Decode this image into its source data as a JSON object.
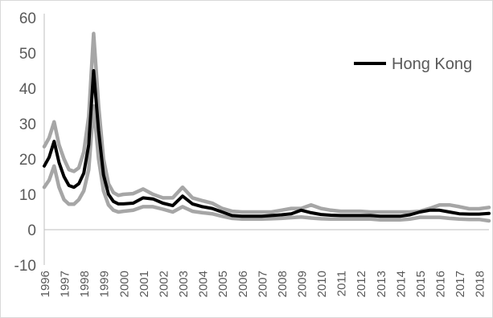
{
  "chart_data": {
    "type": "line",
    "title": "",
    "xlabel": "",
    "ylabel": "",
    "ylim": [
      -10,
      60
    ],
    "xlim": [
      1996,
      2018.5
    ],
    "grid": false,
    "legend_position": "top-right",
    "y_ticks": [
      "-10",
      "0",
      "10",
      "20",
      "30",
      "40",
      "50",
      "60"
    ],
    "x_ticks": [
      "1996",
      "1997",
      "1998",
      "1999",
      "2000",
      "2001",
      "2002",
      "2003",
      "2004",
      "2005",
      "2006",
      "2007",
      "2008",
      "2009",
      "2010",
      "2011",
      "2012",
      "2013",
      "2014",
      "2015",
      "2016",
      "2017",
      "2018"
    ],
    "legend": [
      {
        "label": "Hong Kong",
        "series": "main"
      }
    ],
    "colors": {
      "main": "#000000",
      "band": "#a6a6a6",
      "axis": "#bfbfbf",
      "text": "#595959"
    },
    "x": [
      1996,
      1996.25,
      1996.5,
      1996.75,
      1997,
      1997.25,
      1997.5,
      1997.75,
      1998,
      1998.25,
      1998.5,
      1998.75,
      1999,
      1999.25,
      1999.5,
      1999.75,
      2000,
      2000.5,
      2001,
      2001.5,
      2002,
      2002.5,
      2003,
      2003.5,
      2004,
      2004.5,
      2005,
      2005.5,
      2006,
      2006.5,
      2007,
      2007.5,
      2008,
      2008.5,
      2009,
      2009.5,
      2010,
      2010.5,
      2011,
      2011.5,
      2012,
      2012.5,
      2013,
      2013.5,
      2014,
      2014.5,
      2015,
      2015.5,
      2016,
      2016.5,
      2017,
      2017.5,
      2018,
      2018.5
    ],
    "series": [
      {
        "id": "upper",
        "values": [
          23.5,
          26,
          30.5,
          24,
          20,
          17,
          16.5,
          17.5,
          22,
          32,
          55.5,
          35,
          20,
          13,
          10.5,
          9.7,
          10,
          10.2,
          11.5,
          10,
          9,
          9,
          12,
          9,
          8.2,
          7.5,
          6,
          5.2,
          5,
          5,
          5,
          5,
          5.5,
          6,
          6,
          7,
          6,
          5.5,
          5.2,
          5.2,
          5.2,
          5,
          5,
          5,
          5,
          5,
          5.2,
          6,
          7,
          7,
          6.5,
          5.9,
          5.9,
          6.3
        ]
      },
      {
        "id": "main",
        "values": [
          18,
          20.5,
          25,
          19,
          15,
          12.5,
          12,
          13,
          16,
          24,
          45,
          28,
          15.5,
          10,
          8,
          7.3,
          7.3,
          7.5,
          9,
          8.7,
          7.5,
          6.8,
          9.5,
          7.3,
          6.5,
          6,
          5,
          4,
          3.8,
          3.8,
          3.8,
          4,
          4.2,
          4.5,
          5.5,
          4.8,
          4.3,
          4.1,
          4,
          4,
          4,
          4,
          3.8,
          3.8,
          3.8,
          4.2,
          5,
          5.5,
          5.5,
          5,
          4.5,
          4.4,
          4.4,
          4.6
        ]
      },
      {
        "id": "lower",
        "values": [
          12,
          14,
          18,
          12,
          8.5,
          7.2,
          7.2,
          8.5,
          11,
          17,
          35,
          20,
          11,
          7,
          5.5,
          5,
          5.2,
          5.5,
          6.5,
          6.5,
          5.8,
          5,
          6.5,
          5.2,
          4.8,
          4.5,
          3.8,
          3.2,
          3,
          3,
          3,
          3.1,
          3.2,
          3.4,
          3.6,
          3.3,
          3.1,
          3,
          3,
          3,
          3,
          3,
          2.8,
          2.8,
          2.8,
          3,
          3.5,
          3.5,
          3.5,
          3.2,
          3,
          2.9,
          2.9,
          2.5
        ]
      }
    ]
  }
}
